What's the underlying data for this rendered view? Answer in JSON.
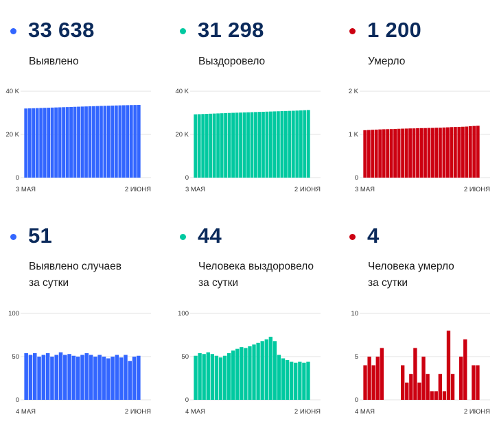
{
  "panels": [
    {
      "id": "detected",
      "color": "#3366ff",
      "value": "33 638",
      "label_lines": [
        "Выявлено"
      ],
      "chart_data": {
        "type": "bar",
        "x_start_label": "3 МАЯ",
        "x_end_label": "2 ИЮНЯ",
        "y_ticks": [
          "0",
          "20 K",
          "40 K"
        ],
        "ylim": [
          0,
          40000
        ],
        "values": [
          32000,
          32060,
          32120,
          32180,
          32240,
          32300,
          32360,
          32420,
          32480,
          32540,
          32600,
          32660,
          32720,
          32780,
          32840,
          32900,
          32960,
          33020,
          33080,
          33140,
          33200,
          33250,
          33300,
          33350,
          33400,
          33450,
          33500,
          33540,
          33580,
          33610,
          33638
        ]
      }
    },
    {
      "id": "recovered",
      "color": "#00c9a0",
      "value": "31 298",
      "label_lines": [
        "Выздоровело"
      ],
      "chart_data": {
        "type": "bar",
        "x_start_label": "3 МАЯ",
        "x_end_label": "2 ИЮНЯ",
        "y_ticks": [
          "0",
          "20 K",
          "40 K"
        ],
        "ylim": [
          0,
          40000
        ],
        "values": [
          29300,
          29370,
          29440,
          29510,
          29580,
          29650,
          29720,
          29790,
          29860,
          29930,
          30000,
          30060,
          30120,
          30180,
          30240,
          30300,
          30360,
          30420,
          30480,
          30540,
          30600,
          30660,
          30720,
          30780,
          30840,
          30900,
          30960,
          31030,
          31110,
          31200,
          31298
        ]
      }
    },
    {
      "id": "died",
      "color": "#cc0011",
      "value": "1 200",
      "label_lines": [
        "Умерло"
      ],
      "chart_data": {
        "type": "bar",
        "x_start_label": "3 МАЯ",
        "x_end_label": "2 ИЮНЯ",
        "y_ticks": [
          "0",
          "1 K",
          "2 K"
        ],
        "ylim": [
          0,
          2000
        ],
        "values": [
          1098,
          1102,
          1107,
          1111,
          1116,
          1120,
          1122,
          1124,
          1126,
          1131,
          1134,
          1136,
          1139,
          1140,
          1143,
          1146,
          1147,
          1150,
          1151,
          1154,
          1155,
          1160,
          1164,
          1170,
          1173,
          1175,
          1178,
          1182,
          1190,
          1196,
          1200
        ]
      }
    },
    {
      "id": "detected-daily",
      "color": "#3366ff",
      "value": "51",
      "label_lines": [
        "Выявлено случаев",
        "за сутки"
      ],
      "chart_data": {
        "type": "bar",
        "x_start_label": "4 МАЯ",
        "x_end_label": "2 ИЮНЯ",
        "y_ticks": [
          "0",
          "50",
          "100"
        ],
        "ylim": [
          0,
          100
        ],
        "values": [
          54,
          52,
          54,
          50,
          52,
          54,
          50,
          52,
          55,
          52,
          53,
          51,
          50,
          52,
          54,
          52,
          50,
          52,
          50,
          48,
          50,
          52,
          49,
          52,
          45,
          50,
          51
        ]
      }
    },
    {
      "id": "recovered-daily",
      "color": "#00c9a0",
      "value": "44",
      "label_lines": [
        "Человека выздоровело",
        "за сутки"
      ],
      "chart_data": {
        "type": "bar",
        "x_start_label": "4 МАЯ",
        "x_end_label": "2 ИЮНЯ",
        "y_ticks": [
          "0",
          "50",
          "100"
        ],
        "ylim": [
          0,
          100
        ],
        "values": [
          51,
          54,
          53,
          55,
          53,
          51,
          49,
          51,
          54,
          57,
          59,
          61,
          60,
          62,
          64,
          66,
          68,
          70,
          73,
          68,
          52,
          48,
          46,
          44,
          43,
          44,
          43,
          44
        ]
      }
    },
    {
      "id": "died-daily",
      "color": "#cc0011",
      "value": "4",
      "label_lines": [
        "Человека умерло",
        "за сутки"
      ],
      "chart_data": {
        "type": "bar",
        "x_start_label": "4 МАЯ",
        "x_end_label": "2 ИЮНЯ",
        "y_ticks": [
          "0",
          "5",
          "10"
        ],
        "ylim": [
          0,
          10
        ],
        "values": [
          4,
          5,
          4,
          5,
          6,
          0,
          0,
          0,
          0,
          4,
          2,
          3,
          6,
          2,
          5,
          3,
          1,
          1,
          3,
          1,
          8,
          3,
          0,
          5,
          7,
          0,
          4,
          4
        ]
      }
    }
  ]
}
